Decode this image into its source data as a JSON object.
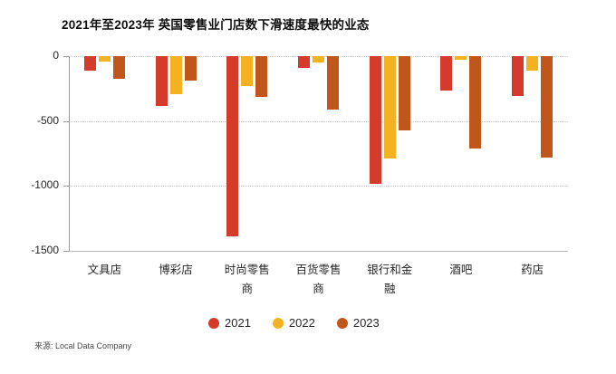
{
  "title": "2021年至2023年 英国零售业门店数下滑速度最快的业态",
  "source": "来源: Local Data Company",
  "colors": {
    "series_2021": "#d43b2a",
    "series_2022": "#f4b223",
    "series_2023": "#c1561a",
    "gridline": "#c9c9c9",
    "axis": "#9a9a9a"
  },
  "chart_data": {
    "type": "bar",
    "title": "2021年至2023年 英国零售业门店数下滑速度最快的业态",
    "categories": [
      "文具店",
      "博彩店",
      "时尚零售商",
      "百货零售商",
      "银行和金融",
      "酒吧",
      "药店"
    ],
    "series": [
      {
        "name": "2021",
        "color": "#d43b2a",
        "values": [
          -110,
          -385,
          -1385,
          -90,
          -985,
          -265,
          -305
        ]
      },
      {
        "name": "2022",
        "color": "#f4b223",
        "values": [
          -40,
          -290,
          -230,
          -50,
          -790,
          -25,
          -110
        ]
      },
      {
        "name": "2023",
        "color": "#c1561a",
        "values": [
          -175,
          -190,
          -315,
          -415,
          -575,
          -710,
          -780
        ]
      }
    ],
    "xlabel": "",
    "ylabel": "",
    "ylim": [
      -1500,
      0
    ],
    "yticks": [
      0,
      -500,
      -1000,
      -1500
    ],
    "grid": "horizontal-dotted",
    "legend_position": "bottom-center",
    "source": "来源: Local Data Company"
  }
}
